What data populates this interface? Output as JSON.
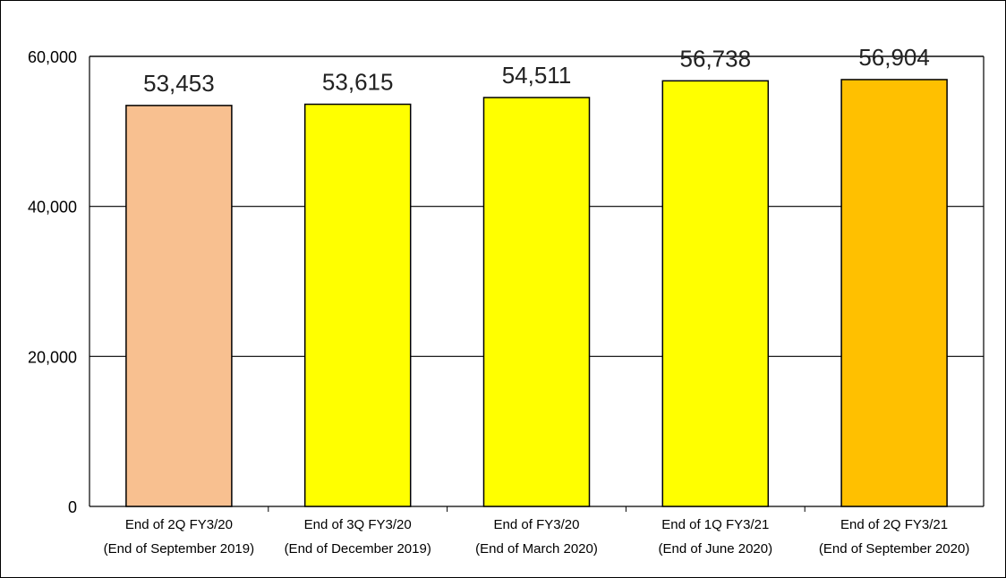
{
  "chart_data": {
    "type": "bar",
    "title": "",
    "xlabel": "",
    "ylabel": "",
    "ylim": [
      0,
      60000
    ],
    "yticks": [
      0,
      20000,
      40000,
      60000
    ],
    "ytick_labels": [
      "0",
      "20,000",
      "40,000",
      "60,000"
    ],
    "grid": true,
    "legend": "none",
    "categories": [
      [
        "End of 2Q FY3/20",
        "(End of September 2019)"
      ],
      [
        "End of 3Q FY3/20",
        "(End of December 2019)"
      ],
      [
        "End of FY3/20",
        "(End of March 2020)"
      ],
      [
        "End of 1Q FY3/21",
        "(End of June 2020)"
      ],
      [
        "End of 2Q FY3/21",
        "(End of September 2020)"
      ]
    ],
    "values": [
      53453,
      53615,
      54511,
      56738,
      56904
    ],
    "value_labels": [
      "53,453",
      "53,615",
      "54,511",
      "56,738",
      "56,904"
    ],
    "colors": [
      "#F8C090",
      "#FFFF00",
      "#FFFF00",
      "#FFFF00",
      "#FFC000"
    ]
  }
}
